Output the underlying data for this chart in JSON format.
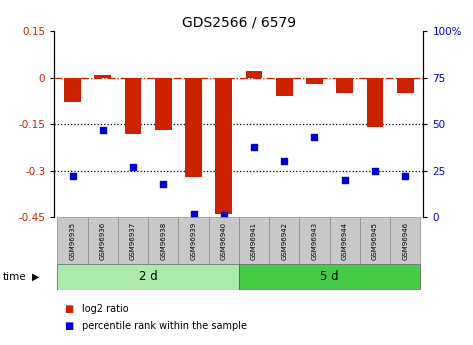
{
  "title": "GDS2566 / 6579",
  "samples": [
    "GSM96935",
    "GSM96936",
    "GSM96937",
    "GSM96938",
    "GSM96939",
    "GSM96940",
    "GSM96941",
    "GSM96942",
    "GSM96943",
    "GSM96944",
    "GSM96945",
    "GSM96946"
  ],
  "log2_ratio": [
    -0.08,
    0.01,
    -0.18,
    -0.17,
    -0.32,
    -0.44,
    0.02,
    -0.06,
    -0.02,
    -0.05,
    -0.16,
    -0.05
  ],
  "percentile_rank": [
    22,
    47,
    27,
    18,
    2,
    1,
    38,
    30,
    43,
    20,
    25,
    22
  ],
  "groups": [
    {
      "label": "2 d",
      "start": 0,
      "end": 6,
      "color": "#AAEAAA"
    },
    {
      "label": "5 d",
      "start": 6,
      "end": 12,
      "color": "#44CC44"
    }
  ],
  "bar_color": "#CC2200",
  "dot_color": "#0000CC",
  "ylim_left": [
    -0.45,
    0.15
  ],
  "ylim_right": [
    0,
    100
  ],
  "yticks_left": [
    0.15,
    0,
    -0.15,
    -0.3,
    -0.45
  ],
  "yticks_right": [
    100,
    75,
    50,
    25,
    0
  ],
  "hline_zero_color": "#CC2200",
  "hline_dotted_vals": [
    -0.15,
    -0.3
  ],
  "bar_width": 0.55,
  "time_label": "time",
  "legend_items": [
    {
      "label": "log2 ratio",
      "color": "#CC2200"
    },
    {
      "label": "percentile rank within the sample",
      "color": "#0000CC"
    }
  ],
  "sample_box_color": "#C8C8C8",
  "background_color": "#ffffff"
}
